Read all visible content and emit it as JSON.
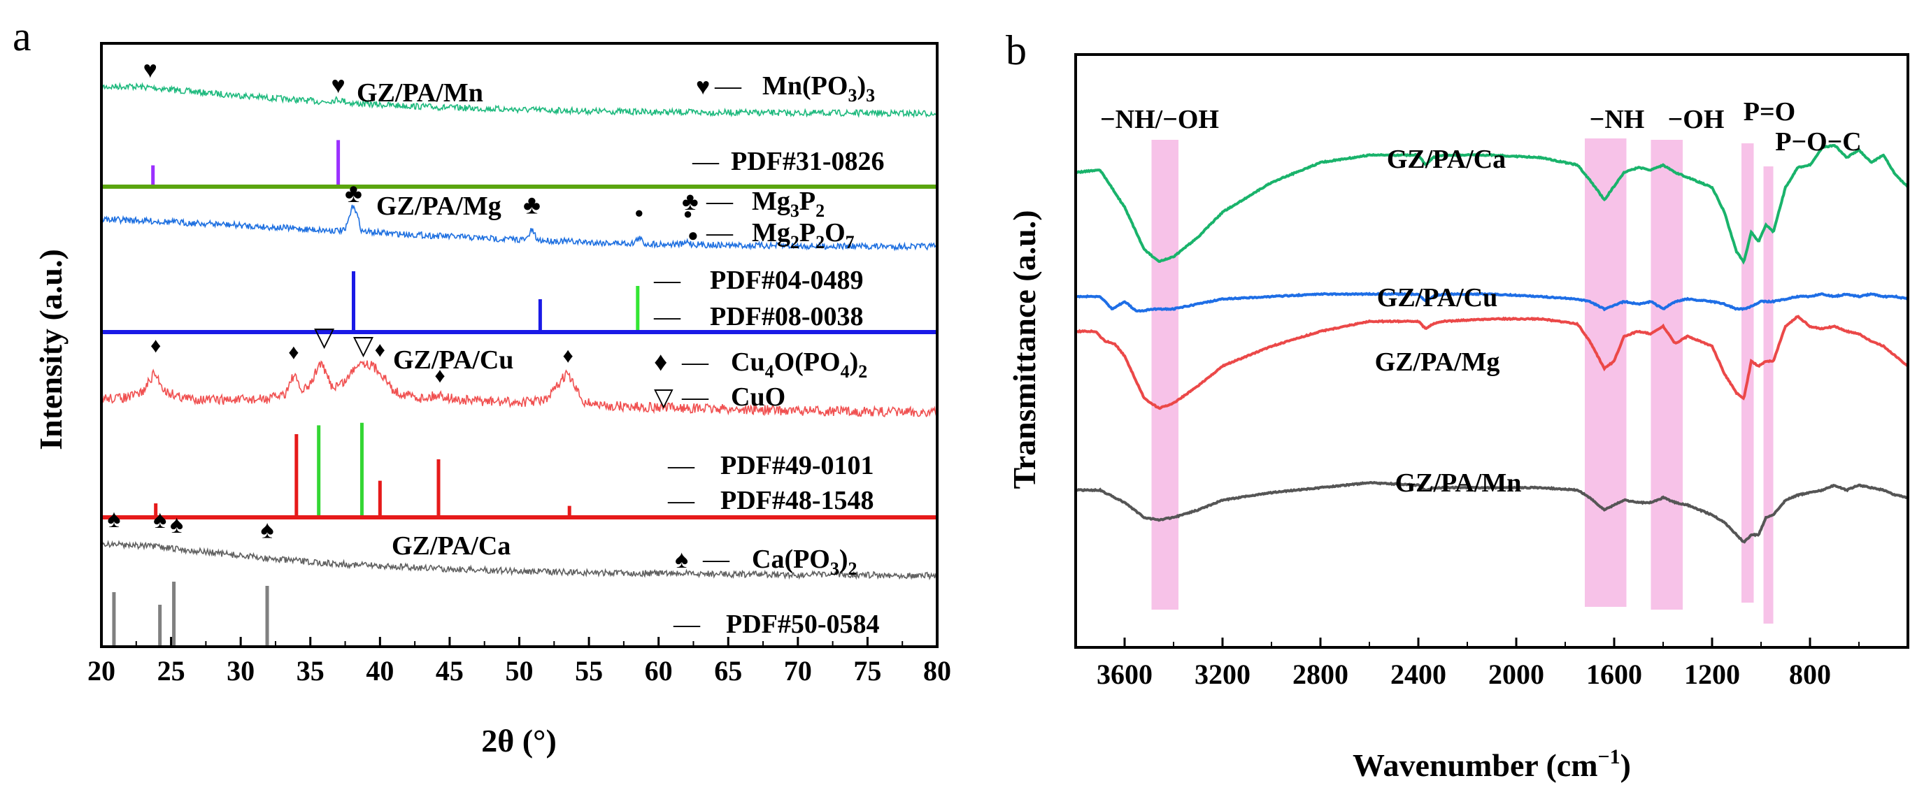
{
  "chart_data": [
    {
      "panel": "a",
      "type": "line",
      "title": "",
      "xlabel": "2θ  (°)",
      "ylabel": "Intensity (a.u.)",
      "xlim": [
        20,
        80
      ],
      "xticks": [
        20,
        25,
        30,
        35,
        40,
        45,
        50,
        55,
        60,
        65,
        70,
        75,
        80
      ],
      "grid": false,
      "subpanels": [
        {
          "sample": "GZ/PA/Mn",
          "color": "#1db97d",
          "series": {
            "name": "GZ/PA/Mn",
            "x": [
              20,
              22,
              24,
              26,
              28,
              30,
              32,
              34,
              36,
              37,
              38,
              40,
              45,
              50,
              55,
              60,
              65,
              70,
              75,
              80
            ],
            "values": [
              0.72,
              0.74,
              0.7,
              0.64,
              0.59,
              0.55,
              0.5,
              0.46,
              0.42,
              0.47,
              0.39,
              0.36,
              0.3,
              0.26,
              0.23,
              0.21,
              0.2,
              0.19,
              0.19,
              0.18
            ]
          },
          "peak_markers": [
            {
              "symbol": "♥",
              "x": 23.5,
              "y": 0.97
            },
            {
              "symbol": "♥",
              "x": 37.0,
              "y": 0.66
            }
          ],
          "legend": [
            {
              "symbol": "♥",
              "label_main": "Mn(PO",
              "label_sub": "3",
              "label_end": ")",
              "label_sub2": "3"
            }
          ],
          "reference_label": "PDF#31-0826",
          "reference_sticks": [
            {
              "x": 23.7,
              "h": 0.3,
              "color": "#9b30ff"
            },
            {
              "x": 37.0,
              "h": 0.68,
              "color": "#9b30ff"
            }
          ],
          "baseline_color": "#5aa50f"
        },
        {
          "sample": "GZ/PA/Mg",
          "color": "#1d6fe0",
          "series": {
            "name": "GZ/PA/Mg",
            "x": [
              20,
              22,
              24,
              26,
              28,
              30,
              32,
              34,
              36,
              37.5,
              38.1,
              38.7,
              40,
              42,
              45,
              48,
              50.5,
              50.9,
              51.3,
              53,
              56,
              58.2,
              58.6,
              59,
              61.8,
              62.1,
              62.4,
              65,
              70,
              75,
              80
            ],
            "values": [
              0.62,
              0.6,
              0.58,
              0.55,
              0.53,
              0.5,
              0.47,
              0.44,
              0.41,
              0.4,
              0.92,
              0.39,
              0.36,
              0.33,
              0.29,
              0.25,
              0.23,
              0.42,
              0.22,
              0.2,
              0.17,
              0.16,
              0.27,
              0.15,
              0.14,
              0.2,
              0.14,
              0.12,
              0.11,
              0.1,
              0.1
            ]
          },
          "peak_markers": [
            {
              "symbol": "♣",
              "x": 38.1,
              "y": 1.0
            },
            {
              "symbol": "♣",
              "x": 50.9,
              "y": 0.78
            },
            {
              "symbol": "●",
              "x": 58.6,
              "y": 0.7
            },
            {
              "symbol": "●",
              "x": 62.1,
              "y": 0.68
            }
          ],
          "legend": [
            {
              "symbol": "♣",
              "label_main": "Mg",
              "label_sub": "3",
              "label_end": "P",
              "label_sub2": "2"
            },
            {
              "symbol": "●",
              "label_main": "Mg",
              "label_sub": "2",
              "label_end": "P",
              "label_sub2": "2",
              "label_tail": "O",
              "label_sub3": "7"
            }
          ],
          "reference_labels": [
            "PDF#04-0489",
            "PDF#08-0038"
          ],
          "reference_sticks": [
            {
              "x": 38.1,
              "h": 0.85,
              "color": "#1a1ae6"
            },
            {
              "x": 51.5,
              "h": 0.45,
              "color": "#1a1ae6"
            },
            {
              "x": 58.5,
              "h": 0.64,
              "color": "#33e633"
            }
          ],
          "baseline_color": "#1a1ae6"
        },
        {
          "sample": "GZ/PA/Cu",
          "color": "#f05050",
          "series": {
            "name": "GZ/PA/Cu",
            "x": [
              20,
              21,
              22,
              23,
              23.8,
              24.6,
              26,
              28,
              30,
              32,
              33.2,
              33.8,
              34.4,
              35,
              35.7,
              36.6,
              37.5,
              38.5,
              39.3,
              40,
              41,
              43,
              44.3,
              45.5,
              48,
              50,
              52,
              53.4,
              54.6,
              56,
              60,
              65,
              70,
              75,
              80
            ],
            "values": [
              0.42,
              0.42,
              0.43,
              0.5,
              0.72,
              0.5,
              0.42,
              0.4,
              0.4,
              0.41,
              0.48,
              0.7,
              0.5,
              0.58,
              0.85,
              0.55,
              0.62,
              0.86,
              0.82,
              0.74,
              0.5,
              0.42,
              0.46,
              0.4,
              0.38,
              0.37,
              0.4,
              0.72,
              0.38,
              0.33,
              0.31,
              0.29,
              0.27,
              0.26,
              0.25
            ]
          },
          "peak_markers": [
            {
              "symbol": "♦",
              "x": 23.9,
              "y": 1.0
            },
            {
              "symbol": "♦",
              "x": 33.8,
              "y": 0.92
            },
            {
              "symbol": "▽",
              "x": 36.0,
              "y": 1.08
            },
            {
              "symbol": "▽",
              "x": 38.8,
              "y": 0.98
            },
            {
              "symbol": "♦",
              "x": 40.0,
              "y": 0.95
            },
            {
              "symbol": "♦",
              "x": 44.3,
              "y": 0.64
            },
            {
              "symbol": "♦",
              "x": 53.5,
              "y": 0.88
            }
          ],
          "legend": [
            {
              "symbol": "♦",
              "label_main": "Cu",
              "label_sub": "4",
              "label_end": "O(PO",
              "label_sub2": "4",
              "label_tail": ")",
              "label_sub3": "2"
            },
            {
              "symbol": "▽",
              "label_main": "CuO"
            }
          ],
          "reference_labels": [
            "PDF#49-0101",
            "PDF#48-1548"
          ],
          "reference_sticks": [
            {
              "x": 23.9,
              "h": 0.1,
              "color": "#e61a1a"
            },
            {
              "x": 34.0,
              "h": 0.65,
              "color": "#e61a1a"
            },
            {
              "x": 35.6,
              "h": 0.72,
              "color": "#33d633"
            },
            {
              "x": 38.7,
              "h": 0.74,
              "color": "#33d633"
            },
            {
              "x": 40.0,
              "h": 0.28,
              "color": "#e61a1a"
            },
            {
              "x": 44.2,
              "h": 0.45,
              "color": "#e61a1a"
            },
            {
              "x": 53.6,
              "h": 0.08,
              "color": "#e61a1a"
            }
          ],
          "baseline_color": "#e61a1a"
        },
        {
          "sample": "GZ/PA/Ca",
          "color": "#606060",
          "series": {
            "name": "GZ/PA/Ca",
            "x": [
              20,
              22,
              24,
              26,
              28,
              30,
              32,
              34,
              36,
              40,
              45,
              50,
              55,
              60,
              65,
              70,
              75,
              80
            ],
            "values": [
              0.78,
              0.77,
              0.74,
              0.7,
              0.66,
              0.62,
              0.58,
              0.55,
              0.52,
              0.48,
              0.44,
              0.41,
              0.39,
              0.38,
              0.37,
              0.36,
              0.36,
              0.35
            ]
          },
          "peak_markers": [
            {
              "symbol": "♠",
              "x": 20.9,
              "y": 1.05
            },
            {
              "symbol": "♠",
              "x": 24.2,
              "y": 1.04
            },
            {
              "symbol": "♠",
              "x": 25.4,
              "y": 0.97
            },
            {
              "symbol": "♠",
              "x": 31.9,
              "y": 0.9
            }
          ],
          "legend": [
            {
              "symbol": "♠",
              "label_main": "Ca(PO",
              "label_sub": "3",
              "label_end": ")",
              "label_sub2": "2"
            }
          ],
          "reference_label": "PDF#50-0584",
          "reference_sticks": [
            {
              "x": 20.9,
              "h": 0.52,
              "color": "#808080"
            },
            {
              "x": 24.2,
              "h": 0.4,
              "color": "#808080"
            },
            {
              "x": 25.2,
              "h": 0.62,
              "color": "#808080"
            },
            {
              "x": 31.9,
              "h": 0.58,
              "color": "#808080"
            }
          ]
        }
      ]
    },
    {
      "panel": "b",
      "type": "line",
      "title": "",
      "xlabel_main": "Wavenumber (cm",
      "xlabel_sup": "−1",
      "xlabel_end": ")",
      "ylabel": "Transmittance (a.u.)",
      "xlim": [
        3800,
        400
      ],
      "xticks": [
        3600,
        3200,
        2800,
        2400,
        2000,
        1600,
        1200,
        800
      ],
      "grid": false,
      "bands": [
        {
          "label": "−NH/−OH",
          "from": 3490,
          "to": 3380
        },
        {
          "label": "−NH",
          "from": 1720,
          "to": 1550
        },
        {
          "label": "−OH",
          "from": 1450,
          "to": 1320
        },
        {
          "label": "P=O",
          "from": 1080,
          "to": 1030
        },
        {
          "label": "P−O−C",
          "from": 990,
          "to": 950
        }
      ],
      "series": [
        {
          "name": "GZ/PA/Ca",
          "color": "#19b36b",
          "x": [
            3800,
            3700,
            3600,
            3520,
            3460,
            3400,
            3300,
            3200,
            3000,
            2800,
            2600,
            2400,
            2370,
            2340,
            2300,
            2100,
            1900,
            1750,
            1700,
            1640,
            1560,
            1500,
            1450,
            1400,
            1350,
            1300,
            1200,
            1150,
            1100,
            1070,
            1040,
            1010,
            980,
            950,
            900,
            850,
            800,
            750,
            700,
            650,
            600,
            550,
            500,
            450,
            400
          ],
          "values": [
            0.86,
            0.87,
            0.72,
            0.55,
            0.5,
            0.52,
            0.6,
            0.7,
            0.82,
            0.9,
            0.93,
            0.93,
            0.89,
            0.92,
            0.93,
            0.93,
            0.92,
            0.89,
            0.83,
            0.75,
            0.86,
            0.88,
            0.87,
            0.89,
            0.86,
            0.84,
            0.8,
            0.7,
            0.54,
            0.5,
            0.62,
            0.58,
            0.65,
            0.62,
            0.8,
            0.88,
            0.89,
            0.96,
            0.97,
            0.92,
            0.95,
            0.9,
            0.93,
            0.85,
            0.8
          ]
        },
        {
          "name": "GZ/PA/Cu",
          "color": "#1e6ee6",
          "x": [
            3800,
            3700,
            3650,
            3600,
            3550,
            3480,
            3400,
            3300,
            3200,
            3000,
            2800,
            2600,
            2400,
            2370,
            2340,
            2300,
            2100,
            1900,
            1750,
            1700,
            1640,
            1560,
            1500,
            1450,
            1400,
            1350,
            1300,
            1200,
            1150,
            1100,
            1070,
            1040,
            1000,
            950,
            900,
            850,
            800,
            750,
            700,
            650,
            600,
            550,
            500,
            450,
            400
          ],
          "values": [
            0.36,
            0.36,
            0.31,
            0.34,
            0.3,
            0.31,
            0.31,
            0.33,
            0.35,
            0.36,
            0.37,
            0.37,
            0.37,
            0.34,
            0.36,
            0.37,
            0.37,
            0.36,
            0.35,
            0.34,
            0.31,
            0.34,
            0.33,
            0.34,
            0.31,
            0.34,
            0.35,
            0.34,
            0.33,
            0.31,
            0.31,
            0.32,
            0.34,
            0.34,
            0.35,
            0.36,
            0.36,
            0.37,
            0.36,
            0.37,
            0.36,
            0.37,
            0.36,
            0.36,
            0.35
          ]
        },
        {
          "name": "GZ/PA/Mg",
          "color": "#eb4848",
          "x": [
            3800,
            3720,
            3680,
            3640,
            3600,
            3520,
            3460,
            3400,
            3300,
            3200,
            3000,
            2800,
            2600,
            2400,
            2370,
            2340,
            2300,
            2100,
            1900,
            1750,
            1700,
            1640,
            1600,
            1560,
            1500,
            1450,
            1400,
            1350,
            1300,
            1200,
            1150,
            1100,
            1070,
            1040,
            1010,
            980,
            950,
            900,
            850,
            800,
            750,
            700,
            650,
            600,
            550,
            500,
            450,
            400
          ],
          "values": [
            0.22,
            0.22,
            0.18,
            0.17,
            0.12,
            -0.05,
            -0.09,
            -0.07,
            0.0,
            0.08,
            0.16,
            0.22,
            0.26,
            0.26,
            0.23,
            0.25,
            0.26,
            0.27,
            0.27,
            0.25,
            0.18,
            0.07,
            0.1,
            0.2,
            0.22,
            0.21,
            0.24,
            0.17,
            0.2,
            0.16,
            0.05,
            -0.03,
            -0.05,
            0.1,
            0.08,
            0.1,
            0.1,
            0.24,
            0.28,
            0.24,
            0.23,
            0.24,
            0.22,
            0.21,
            0.18,
            0.16,
            0.12,
            0.08
          ]
        },
        {
          "name": "GZ/PA/Mn",
          "color": "#555555",
          "x": [
            3800,
            3700,
            3600,
            3520,
            3460,
            3400,
            3300,
            3200,
            3000,
            2800,
            2600,
            2400,
            2370,
            2340,
            2300,
            2100,
            1900,
            1750,
            1700,
            1640,
            1560,
            1500,
            1450,
            1400,
            1350,
            1300,
            1200,
            1150,
            1100,
            1070,
            1040,
            1010,
            980,
            950,
            900,
            850,
            800,
            750,
            700,
            650,
            600,
            550,
            500,
            450,
            400
          ],
          "values": [
            -0.42,
            -0.42,
            -0.47,
            -0.53,
            -0.54,
            -0.53,
            -0.5,
            -0.46,
            -0.43,
            -0.41,
            -0.39,
            -0.4,
            -0.42,
            -0.41,
            -0.41,
            -0.41,
            -0.41,
            -0.42,
            -0.45,
            -0.5,
            -0.46,
            -0.47,
            -0.47,
            -0.45,
            -0.47,
            -0.48,
            -0.52,
            -0.55,
            -0.6,
            -0.63,
            -0.6,
            -0.6,
            -0.53,
            -0.52,
            -0.46,
            -0.44,
            -0.43,
            -0.42,
            -0.4,
            -0.42,
            -0.4,
            -0.41,
            -0.42,
            -0.44,
            -0.45
          ]
        }
      ],
      "curve_labels": [
        "GZ/PA/Ca",
        "GZ/PA/Cu",
        "GZ/PA/Mg",
        "GZ/PA/Mn"
      ]
    }
  ],
  "panel_labels": {
    "a": "a",
    "b": "b"
  },
  "legend_dash": "—"
}
